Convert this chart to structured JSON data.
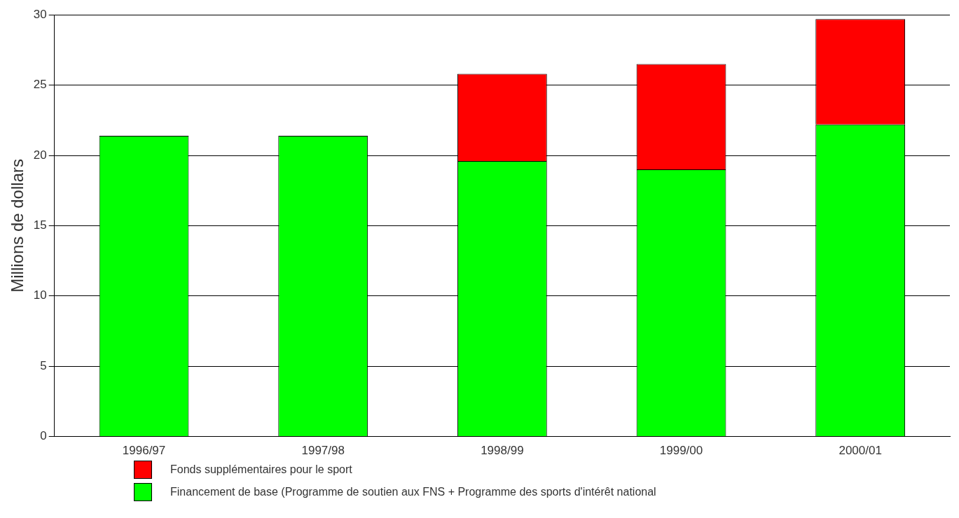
{
  "chart_data": {
    "type": "bar",
    "stacked": true,
    "ylabel": "Millions de dollars",
    "categories": [
      "1996/97",
      "1997/98",
      "1998/99",
      "1999/00",
      "2000/01"
    ],
    "series": [
      {
        "name": "Financement de base (Programme de soutien aux FNS + Programme des sports d'intérêt national",
        "color": "#00ff00",
        "values": [
          21.4,
          21.4,
          19.6,
          19.0,
          22.2
        ]
      },
      {
        "name": "Fonds supplémentaires pour le sport",
        "color": "#ff0000",
        "values": [
          null,
          null,
          6.2,
          7.5,
          7.5
        ]
      }
    ],
    "ylim": [
      0,
      30
    ],
    "yticks": [
      0,
      5,
      10,
      15,
      20,
      25,
      30
    ],
    "grid": "y",
    "legend": "bottom"
  }
}
